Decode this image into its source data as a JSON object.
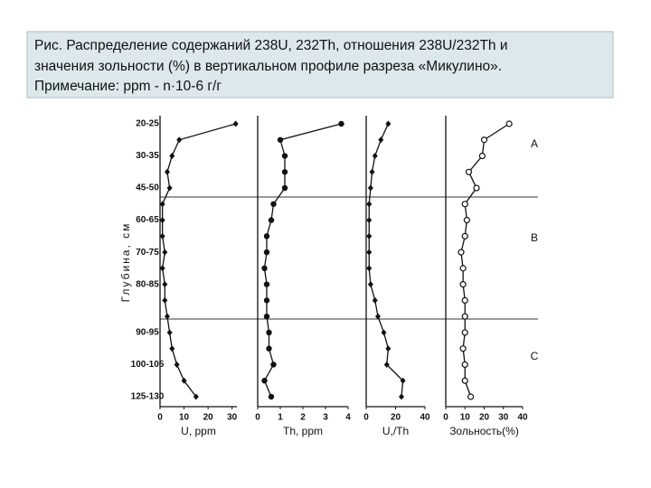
{
  "caption": [
    "Рис. Распределение содержаний 238U, 232Th, отношения 238U/232Th и",
    "значения зольности (%) в вертикальном профиле разреза «Микулино».",
    "Примечание: ppm - n·10-6 г/г"
  ],
  "chart_data": [
    {
      "type": "line",
      "marker": "diamond",
      "y_label": "Глубина, см",
      "x_label": "U, ppm",
      "categories": [
        "20-25",
        null,
        "30-35",
        null,
        "45-50",
        null,
        "60-65",
        null,
        "70-75",
        null,
        "80-85",
        null,
        null,
        "90-95",
        null,
        "100-105",
        null,
        "125-130"
      ],
      "xlim": [
        0,
        32
      ],
      "xticks": [
        0,
        10,
        20,
        30
      ],
      "values": [
        31.5,
        8,
        5,
        3,
        4,
        1,
        1,
        1,
        2,
        1,
        2,
        2,
        3,
        4,
        5,
        7,
        10,
        15
      ]
    },
    {
      "type": "line",
      "marker": "circle",
      "x_label": "Th, ppm",
      "xlim": [
        0,
        4
      ],
      "xticks": [
        0,
        1,
        2,
        3,
        4
      ],
      "values": [
        3.7,
        1.0,
        1.2,
        1.2,
        1.2,
        0.7,
        0.6,
        0.4,
        0.4,
        0.3,
        0.4,
        0.4,
        0.4,
        0.5,
        0.5,
        0.7,
        0.3,
        0.6
      ]
    },
    {
      "type": "line",
      "marker": "diamond",
      "x_label": "U,/Th",
      "xlim": [
        0,
        40
      ],
      "xticks": [
        0,
        20,
        40
      ],
      "values": [
        15,
        10,
        6,
        4,
        3,
        2,
        2,
        2,
        2,
        2,
        3,
        6,
        8,
        12,
        15,
        14,
        25,
        24
      ]
    },
    {
      "type": "line",
      "marker": "open-circle",
      "x_label": "Зольность(%)",
      "xlim": [
        0,
        40
      ],
      "xticks": [
        0,
        10,
        20,
        30,
        40
      ],
      "values": [
        33,
        20,
        19,
        12,
        16,
        10,
        11,
        10,
        8,
        9,
        9,
        10,
        10,
        10,
        9,
        10,
        10,
        13
      ],
      "annotations": [
        "A",
        "B",
        "C"
      ]
    }
  ]
}
